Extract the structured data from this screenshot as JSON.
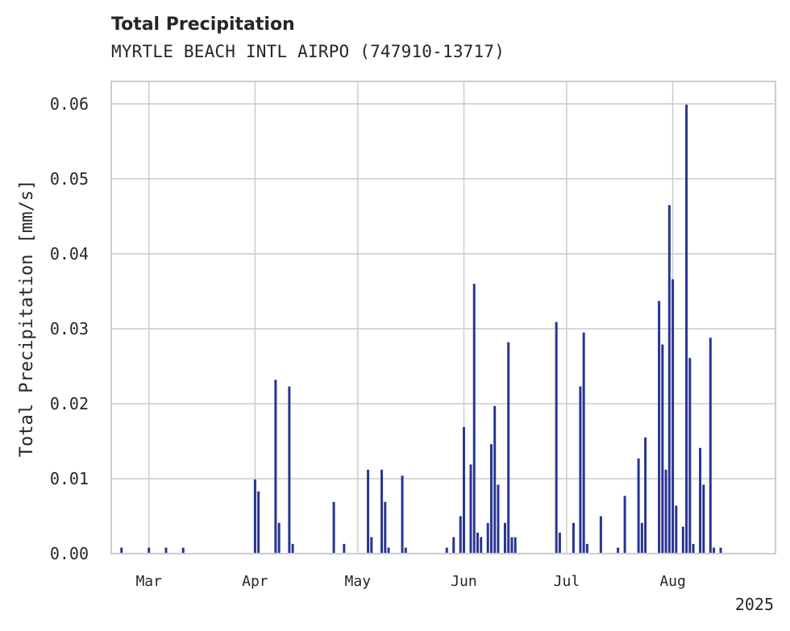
{
  "header": {
    "title": "Total Precipitation",
    "subtitle": "MYRTLE BEACH INTL AIRPO (747910-13717)"
  },
  "colors": {
    "bar": "#283593",
    "grid": "#cccccc",
    "frame": "#cccccc",
    "text": "#262626"
  },
  "chart_data": {
    "type": "bar",
    "ylabel": "Total Precipitation [mm/s]",
    "xlabel": "",
    "ylim": [
      0,
      0.063
    ],
    "xlim": [
      "2025-02-18",
      "2025-08-31"
    ],
    "yticks": [
      0.0,
      0.01,
      0.02,
      0.03,
      0.04,
      0.05,
      0.06
    ],
    "ytick_labels": [
      "0.00",
      "0.01",
      "0.02",
      "0.03",
      "0.04",
      "0.05",
      "0.06"
    ],
    "xticks": [
      "2025-03-01",
      "2025-04-01",
      "2025-05-01",
      "2025-06-01",
      "2025-07-01",
      "2025-08-01"
    ],
    "xtick_labels": [
      "Mar",
      "Apr",
      "May",
      "Jun",
      "Jul",
      "Aug"
    ],
    "x_offset_label": "2025",
    "grid": true,
    "series": [
      {
        "x": [
          "2025-02-21",
          "2025-03-01",
          "2025-03-06",
          "2025-03-11",
          "2025-04-01",
          "2025-04-02",
          "2025-04-07",
          "2025-04-08",
          "2025-04-11",
          "2025-04-12",
          "2025-04-24",
          "2025-04-27",
          "2025-05-04",
          "2025-05-05",
          "2025-05-08",
          "2025-05-09",
          "2025-05-10",
          "2025-05-14",
          "2025-05-15",
          "2025-05-27",
          "2025-05-29",
          "2025-05-31",
          "2025-06-01",
          "2025-06-03",
          "2025-06-04",
          "2025-06-05",
          "2025-06-06",
          "2025-06-08",
          "2025-06-09",
          "2025-06-10",
          "2025-06-11",
          "2025-06-13",
          "2025-06-14",
          "2025-06-15",
          "2025-06-16",
          "2025-06-28",
          "2025-06-29",
          "2025-07-03",
          "2025-07-05",
          "2025-07-06",
          "2025-07-07",
          "2025-07-11",
          "2025-07-16",
          "2025-07-18",
          "2025-07-22",
          "2025-07-23",
          "2025-07-24",
          "2025-07-28",
          "2025-07-29",
          "2025-07-30",
          "2025-07-31",
          "2025-08-01",
          "2025-08-02",
          "2025-08-04",
          "2025-08-05",
          "2025-08-06",
          "2025-08-07",
          "2025-08-09",
          "2025-08-10",
          "2025-08-12",
          "2025-08-13",
          "2025-08-15"
        ],
        "values": [
          0.0008,
          0.0008,
          0.0008,
          0.0008,
          0.0099,
          0.0083,
          0.0232,
          0.0041,
          0.0223,
          0.0013,
          0.0069,
          0.0013,
          0.0112,
          0.0022,
          0.0112,
          0.0069,
          0.0008,
          0.0104,
          0.0008,
          0.0008,
          0.0022,
          0.005,
          0.0169,
          0.0119,
          0.036,
          0.0028,
          0.0022,
          0.0041,
          0.0146,
          0.0197,
          0.0092,
          0.0041,
          0.0282,
          0.0022,
          0.0022,
          0.0309,
          0.0028,
          0.0041,
          0.0223,
          0.0295,
          0.0013,
          0.005,
          0.0008,
          0.0077,
          0.0127,
          0.0041,
          0.0155,
          0.0337,
          0.0279,
          0.0112,
          0.0465,
          0.0366,
          0.0064,
          0.0036,
          0.0599,
          0.0261,
          0.0013,
          0.0141,
          0.0092,
          0.0288,
          0.0008,
          0.0008
        ]
      }
    ]
  }
}
